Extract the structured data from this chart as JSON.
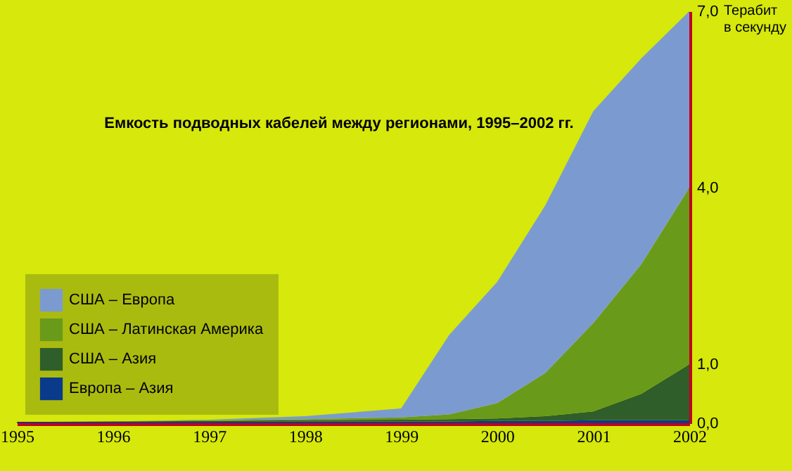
{
  "chart_data": {
    "type": "area",
    "title": "Емкость подводных кабелей между регионами, 1995–2002 гг.",
    "ylabel": "Терабит в секунду",
    "x": [
      1995,
      1996,
      1997,
      1998,
      1999,
      1999.5,
      2000,
      2000.5,
      2001,
      2001.5,
      2002
    ],
    "stacked": true,
    "series": [
      {
        "name": "Европа – Азия",
        "color": "#0a3a8a",
        "values": [
          0.02,
          0.02,
          0.02,
          0.03,
          0.03,
          0.03,
          0.04,
          0.04,
          0.05,
          0.05,
          0.05
        ]
      },
      {
        "name": "США – Азия",
        "color": "#2f5e2a",
        "values": [
          0,
          0.01,
          0.02,
          0.02,
          0.03,
          0.04,
          0.04,
          0.08,
          0.15,
          0.45,
          0.95
        ]
      },
      {
        "name": "США – Латинская Америка",
        "color": "#6a9a1a",
        "values": [
          0,
          0,
          0.01,
          0.02,
          0.04,
          0.08,
          0.26,
          0.73,
          1.5,
          2.2,
          3.0
        ]
      },
      {
        "name": "США – Европа",
        "color": "#7b9bd0",
        "values": [
          0,
          0,
          0.01,
          0.05,
          0.15,
          1.35,
          2.06,
          2.85,
          3.6,
          3.5,
          3.0
        ]
      }
    ],
    "xlim": [
      1995,
      2002
    ],
    "xticks": [
      1995,
      1996,
      1997,
      1998,
      1999,
      2000,
      2001,
      2002
    ],
    "ylim": [
      0,
      7
    ],
    "yticks": [
      {
        "value": 0,
        "label": "0,0"
      },
      {
        "value": 1,
        "label": "1,0"
      },
      {
        "value": 4,
        "label": "4,0"
      },
      {
        "value": 7,
        "label": "7,0"
      }
    ],
    "grid": false,
    "legend": "bottom left"
  }
}
